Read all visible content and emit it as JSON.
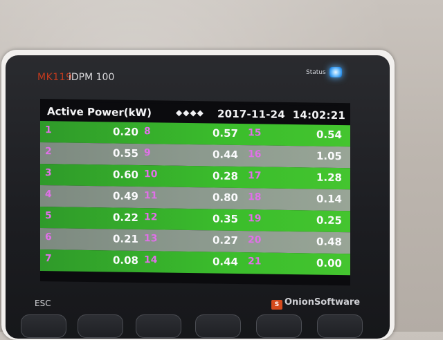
{
  "device": {
    "model": "MK119",
    "product": "iDPM 100",
    "status_label": "Status",
    "esc_label": "ESC",
    "vendor": "OnionSoftware"
  },
  "screen": {
    "title": "Active Power(kW)",
    "nav_icons": "◆◆◆◆",
    "datetime": "2017-11-24  14:02:21",
    "rows": [
      {
        "c1": "1",
        "v1": "0.20",
        "c2": "8",
        "v2": "0.57",
        "c3": "15",
        "v3": "0.54"
      },
      {
        "c1": "2",
        "v1": "0.55",
        "c2": "9",
        "v2": "0.44",
        "c3": "16",
        "v3": "1.05"
      },
      {
        "c1": "3",
        "v1": "0.60",
        "c2": "10",
        "v2": "0.28",
        "c3": "17",
        "v3": "1.28"
      },
      {
        "c1": "4",
        "v1": "0.49",
        "c2": "11",
        "v2": "0.80",
        "c3": "18",
        "v3": "0.14"
      },
      {
        "c1": "5",
        "v1": "0.22",
        "c2": "12",
        "v2": "0.35",
        "c3": "19",
        "v3": "0.25"
      },
      {
        "c1": "6",
        "v1": "0.21",
        "c2": "13",
        "v2": "0.27",
        "c3": "20",
        "v3": "0.48"
      },
      {
        "c1": "7",
        "v1": "0.08",
        "c2": "14",
        "v2": "0.44",
        "c3": "21",
        "v3": "0.00"
      }
    ]
  },
  "colors": {
    "row_green": "#3bbd2c",
    "row_gray": "#8e9c90",
    "channel_text": "#e070e8",
    "status_led": "#58b4ff",
    "brand_model": "#c33a1e"
  }
}
